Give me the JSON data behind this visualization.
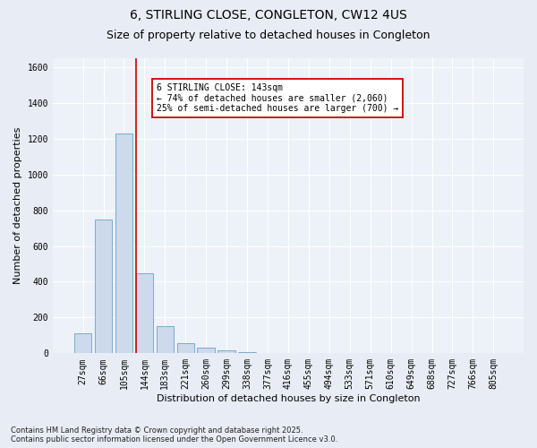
{
  "title": "6, STIRLING CLOSE, CONGLETON, CW12 4US",
  "subtitle": "Size of property relative to detached houses in Congleton",
  "xlabel": "Distribution of detached houses by size in Congleton",
  "ylabel": "Number of detached properties",
  "footer_line1": "Contains HM Land Registry data © Crown copyright and database right 2025.",
  "footer_line2": "Contains public sector information licensed under the Open Government Licence v3.0.",
  "categories": [
    "27sqm",
    "66sqm",
    "105sqm",
    "144sqm",
    "183sqm",
    "221sqm",
    "260sqm",
    "299sqm",
    "338sqm",
    "377sqm",
    "416sqm",
    "455sqm",
    "494sqm",
    "533sqm",
    "571sqm",
    "610sqm",
    "649sqm",
    "688sqm",
    "727sqm",
    "766sqm",
    "805sqm"
  ],
  "values": [
    110,
    750,
    1230,
    450,
    150,
    55,
    30,
    15,
    5,
    2,
    1,
    1,
    0,
    0,
    0,
    0,
    0,
    0,
    0,
    0,
    0
  ],
  "bar_color": "#ccdaec",
  "bar_edge_color": "#7aaad0",
  "red_line_color": "#cc0000",
  "annotation_text": "6 STIRLING CLOSE: 143sqm\n← 74% of detached houses are smaller (2,060)\n25% of semi-detached houses are larger (700) →",
  "annotation_box_facecolor": "white",
  "annotation_box_edgecolor": "#cc0000",
  "ylim": [
    0,
    1650
  ],
  "yticks": [
    0,
    200,
    400,
    600,
    800,
    1000,
    1200,
    1400,
    1600
  ],
  "background_color": "#e8edf5",
  "plot_background_color": "#edf1f8",
  "grid_color": "#ffffff",
  "title_fontsize": 10,
  "subtitle_fontsize": 9,
  "xlabel_fontsize": 8,
  "ylabel_fontsize": 8,
  "tick_fontsize": 7,
  "annotation_fontsize": 7,
  "footer_fontsize": 6
}
